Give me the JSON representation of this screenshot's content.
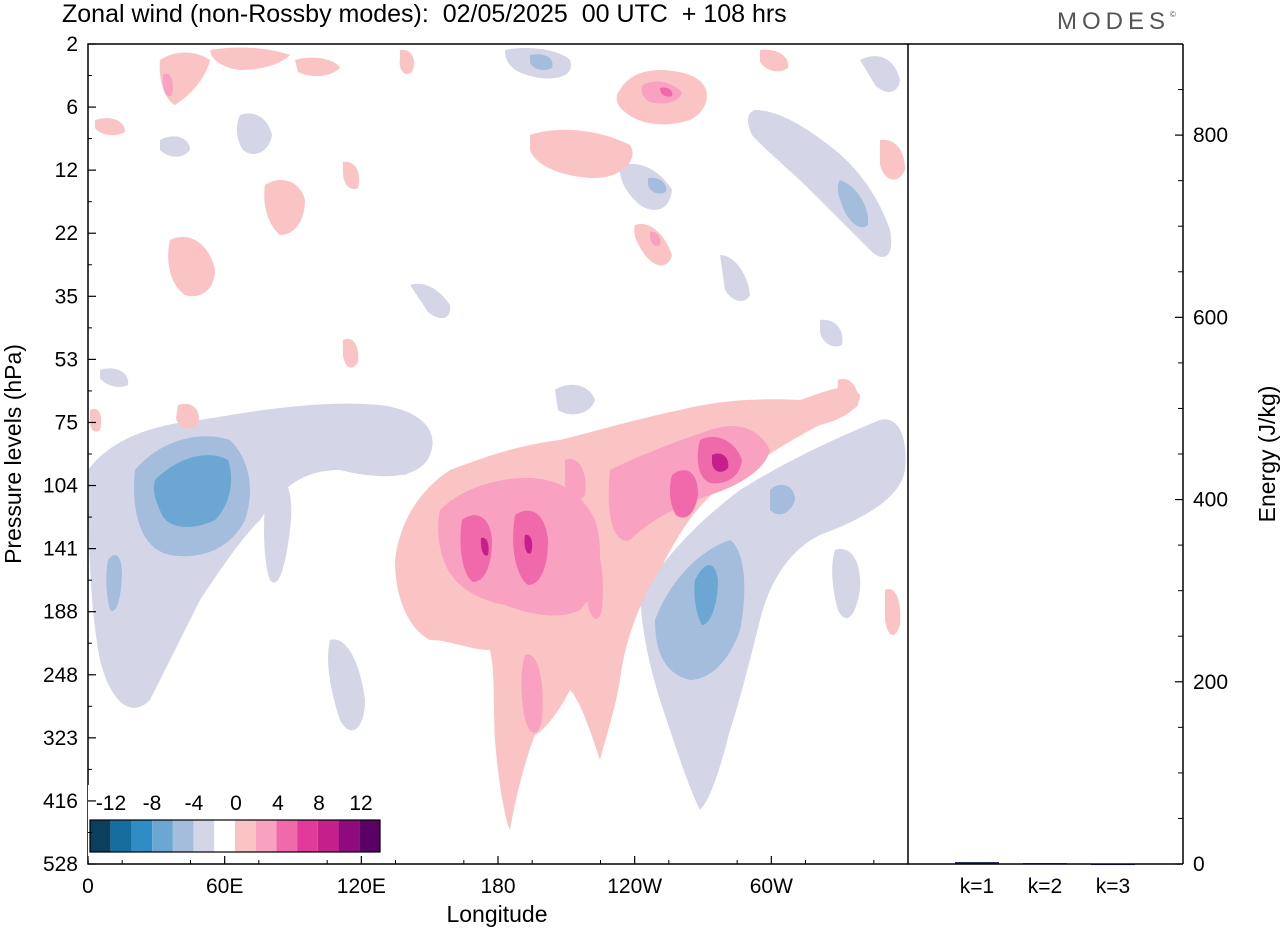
{
  "header": {
    "title": "Zonal wind (non-Rossby modes):  02/05/2025  00 UTC  + 108 hrs",
    "logo_text": "MODES",
    "logo_mark": "©"
  },
  "chart_data": [
    {
      "type": "heatmap",
      "title": "Zonal wind (non-Rossby modes):  02/05/2025  00 UTC  + 108 hrs",
      "xlabel": "Longitude",
      "ylabel": "Pressure levels (hPa)",
      "x_tick_labels": [
        "0",
        "60E",
        "120E",
        "180",
        "120W",
        "60W"
      ],
      "x_tick_positions_deg": [
        0,
        60,
        120,
        180,
        240,
        300
      ],
      "x_range_deg": [
        0,
        360
      ],
      "y_tick_labels": [
        "2",
        "6",
        "12",
        "22",
        "35",
        "53",
        "75",
        "104",
        "141",
        "188",
        "248",
        "323",
        "416",
        "528"
      ],
      "y_scale": "pressure levels, top 2 hPa to bottom 528 hPa",
      "colorbar": {
        "tick_labels": [
          "-12",
          "-8",
          "-4",
          "0",
          "4",
          "8",
          "12"
        ],
        "levels": [
          -14,
          -12,
          -10,
          -8,
          -6,
          -4,
          -2,
          2,
          4,
          6,
          8,
          10,
          12,
          14
        ],
        "colors": [
          "#0c3f5e",
          "#156ea0",
          "#2f8cc4",
          "#6ca7d3",
          "#a4bddd",
          "#d4d6e8",
          "#ffffff",
          "#fbc4c4",
          "#f8a1c0",
          "#f06aab",
          "#e23a9a",
          "#c41f8a",
          "#8e0a7d",
          "#5a0066"
        ],
        "placement": "bottom-left"
      },
      "features": [
        {
          "sign": "positive",
          "max_value": 10,
          "longitude_deg": 175,
          "pressure_hPa": 141
        },
        {
          "sign": "positive",
          "max_value": 10,
          "longitude_deg": 193,
          "pressure_hPa": 141
        },
        {
          "sign": "positive",
          "max_value": 10,
          "longitude_deg": 275,
          "pressure_hPa": 104
        },
        {
          "sign": "positive",
          "max_value": 8,
          "longitude_deg": 262,
          "pressure_hPa": 115
        },
        {
          "sign": "positive",
          "max_value": 6,
          "longitude_deg": 253,
          "pressure_hPa": 6
        },
        {
          "sign": "positive",
          "max_value": 6,
          "longitude_deg": 190,
          "pressure_hPa": 248
        },
        {
          "sign": "negative",
          "min_value": -8,
          "longitude_deg": 50,
          "pressure_hPa": 115
        },
        {
          "sign": "negative",
          "min_value": -8,
          "longitude_deg": 272,
          "pressure_hPa": 200
        },
        {
          "sign": "negative",
          "min_value": -6,
          "longitude_deg": 335,
          "pressure_hPa": 18
        }
      ]
    },
    {
      "type": "bar",
      "ylabel": "Energy (J/kg)",
      "categories": [
        "k=1",
        "k=2",
        "k=3"
      ],
      "values": [
        2,
        1,
        0.5
      ],
      "ylim": [
        0,
        900
      ],
      "y_tick_labels": [
        "0",
        "200",
        "400",
        "600",
        "800"
      ],
      "y_ticks": [
        0,
        200,
        400,
        600,
        800
      ]
    }
  ]
}
